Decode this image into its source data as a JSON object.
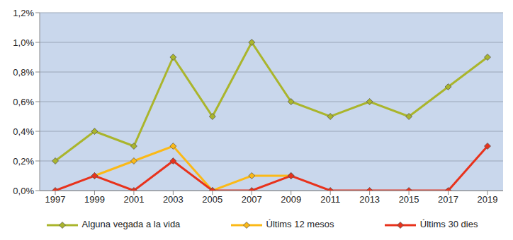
{
  "chart_data": {
    "type": "line",
    "categories": [
      "1997",
      "1999",
      "2001",
      "2003",
      "2005",
      "2007",
      "2009",
      "2011",
      "2013",
      "2015",
      "2017",
      "2019"
    ],
    "series": [
      {
        "name": "Alguna vegada a la vida",
        "color": "#aab52c",
        "marker": "diamond",
        "values": [
          0.2,
          0.4,
          0.3,
          0.9,
          0.5,
          1.0,
          0.6,
          0.5,
          0.6,
          0.5,
          0.7,
          0.9
        ]
      },
      {
        "name": "Últims 12 mesos",
        "color": "#fbb917",
        "marker": "diamond",
        "values": [
          null,
          0.1,
          0.2,
          0.3,
          0.0,
          0.1,
          0.1,
          null,
          null,
          null,
          null,
          null
        ]
      },
      {
        "name": "Últims 30 dies",
        "color": "#e8321c",
        "marker": "diamond",
        "values": [
          0.0,
          0.1,
          0.0,
          0.2,
          0.0,
          0.0,
          0.1,
          0.0,
          0.0,
          0.0,
          0.0,
          0.3
        ]
      }
    ],
    "ylim": [
      0,
      1.2
    ],
    "yticks": [
      {
        "value": 0,
        "label": "0,0%"
      },
      {
        "value": 0.2,
        "label": "0,2%"
      },
      {
        "value": 0.4,
        "label": "0,4%"
      },
      {
        "value": 0.6,
        "label": "0,6%"
      },
      {
        "value": 0.8,
        "label": "0,8%"
      },
      {
        "value": 1.0,
        "label": "1,0%"
      },
      {
        "value": 1.2,
        "label": "1,2%"
      }
    ],
    "grid": true,
    "legend": "bottom"
  }
}
